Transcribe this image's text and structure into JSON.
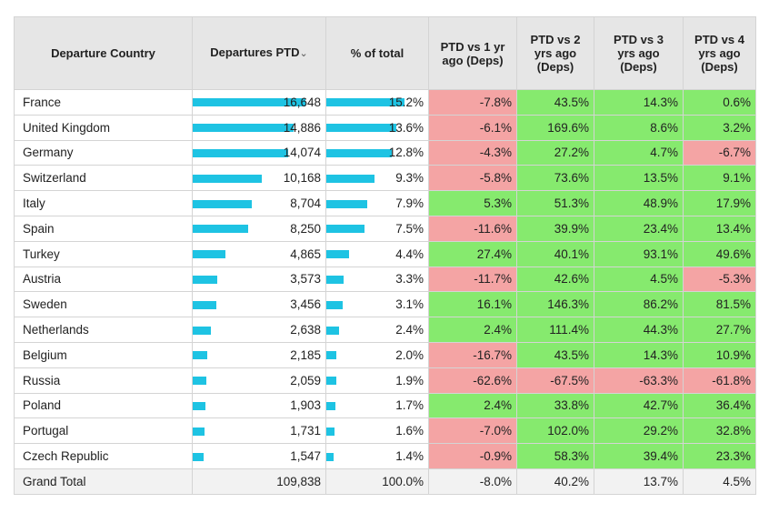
{
  "chart_data": {
    "type": "table",
    "columns": {
      "country": "Departure Country",
      "departures": "Departures PTD",
      "share": "% of total",
      "vs1": "PTD vs 1 yr ago (Deps)",
      "vs2": "PTD vs 2 yrs ago (Deps)",
      "vs3": "PTD vs 3 yrs ago (Deps)",
      "vs4": "PTD vs 4 yrs ago (Deps)"
    },
    "sort_indicator": "⌄",
    "bar_color": "#1ec3e3",
    "positive_color": "#86ea6e",
    "negative_color": "#f4a4a4",
    "rows": [
      {
        "country": "France",
        "departures": "16,648",
        "dep_value": 16648,
        "share": "15.2%",
        "share_value": 15.2,
        "vs1": "-7.8%",
        "vs2": "43.5%",
        "vs3": "14.3%",
        "vs4": "0.6%"
      },
      {
        "country": "United Kingdom",
        "departures": "14,886",
        "dep_value": 14886,
        "share": "13.6%",
        "share_value": 13.6,
        "vs1": "-6.1%",
        "vs2": "169.6%",
        "vs3": "8.6%",
        "vs4": "3.2%"
      },
      {
        "country": "Germany",
        "departures": "14,074",
        "dep_value": 14074,
        "share": "12.8%",
        "share_value": 12.8,
        "vs1": "-4.3%",
        "vs2": "27.2%",
        "vs3": "4.7%",
        "vs4": "-6.7%"
      },
      {
        "country": "Switzerland",
        "departures": "10,168",
        "dep_value": 10168,
        "share": "9.3%",
        "share_value": 9.3,
        "vs1": "-5.8%",
        "vs2": "73.6%",
        "vs3": "13.5%",
        "vs4": "9.1%"
      },
      {
        "country": "Italy",
        "departures": "8,704",
        "dep_value": 8704,
        "share": "7.9%",
        "share_value": 7.9,
        "vs1": "5.3%",
        "vs2": "51.3%",
        "vs3": "48.9%",
        "vs4": "17.9%"
      },
      {
        "country": "Spain",
        "departures": "8,250",
        "dep_value": 8250,
        "share": "7.5%",
        "share_value": 7.5,
        "vs1": "-11.6%",
        "vs2": "39.9%",
        "vs3": "23.4%",
        "vs4": "13.4%"
      },
      {
        "country": "Turkey",
        "departures": "4,865",
        "dep_value": 4865,
        "share": "4.4%",
        "share_value": 4.4,
        "vs1": "27.4%",
        "vs2": "40.1%",
        "vs3": "93.1%",
        "vs4": "49.6%"
      },
      {
        "country": "Austria",
        "departures": "3,573",
        "dep_value": 3573,
        "share": "3.3%",
        "share_value": 3.3,
        "vs1": "-11.7%",
        "vs2": "42.6%",
        "vs3": "4.5%",
        "vs4": "-5.3%"
      },
      {
        "country": "Sweden",
        "departures": "3,456",
        "dep_value": 3456,
        "share": "3.1%",
        "share_value": 3.1,
        "vs1": "16.1%",
        "vs2": "146.3%",
        "vs3": "86.2%",
        "vs4": "81.5%"
      },
      {
        "country": "Netherlands",
        "departures": "2,638",
        "dep_value": 2638,
        "share": "2.4%",
        "share_value": 2.4,
        "vs1": "2.4%",
        "vs2": "111.4%",
        "vs3": "44.3%",
        "vs4": "27.7%"
      },
      {
        "country": "Belgium",
        "departures": "2,185",
        "dep_value": 2185,
        "share": "2.0%",
        "share_value": 2.0,
        "vs1": "-16.7%",
        "vs2": "43.5%",
        "vs3": "14.3%",
        "vs4": "10.9%"
      },
      {
        "country": "Russia",
        "departures": "2,059",
        "dep_value": 2059,
        "share": "1.9%",
        "share_value": 1.9,
        "vs1": "-62.6%",
        "vs2": "-67.5%",
        "vs3": "-63.3%",
        "vs4": "-61.8%"
      },
      {
        "country": "Poland",
        "departures": "1,903",
        "dep_value": 1903,
        "share": "1.7%",
        "share_value": 1.7,
        "vs1": "2.4%",
        "vs2": "33.8%",
        "vs3": "42.7%",
        "vs4": "36.4%"
      },
      {
        "country": "Portugal",
        "departures": "1,731",
        "dep_value": 1731,
        "share": "1.6%",
        "share_value": 1.6,
        "vs1": "-7.0%",
        "vs2": "102.0%",
        "vs3": "29.2%",
        "vs4": "32.8%"
      },
      {
        "country": "Czech Republic",
        "departures": "1,547",
        "dep_value": 1547,
        "share": "1.4%",
        "share_value": 1.4,
        "vs1": "-0.9%",
        "vs2": "58.3%",
        "vs3": "39.4%",
        "vs4": "23.3%"
      }
    ],
    "total": {
      "country": "Grand Total",
      "departures": "109,838",
      "share": "100.0%",
      "vs1": "-8.0%",
      "vs2": "40.2%",
      "vs3": "13.7%",
      "vs4": "4.5%"
    }
  }
}
